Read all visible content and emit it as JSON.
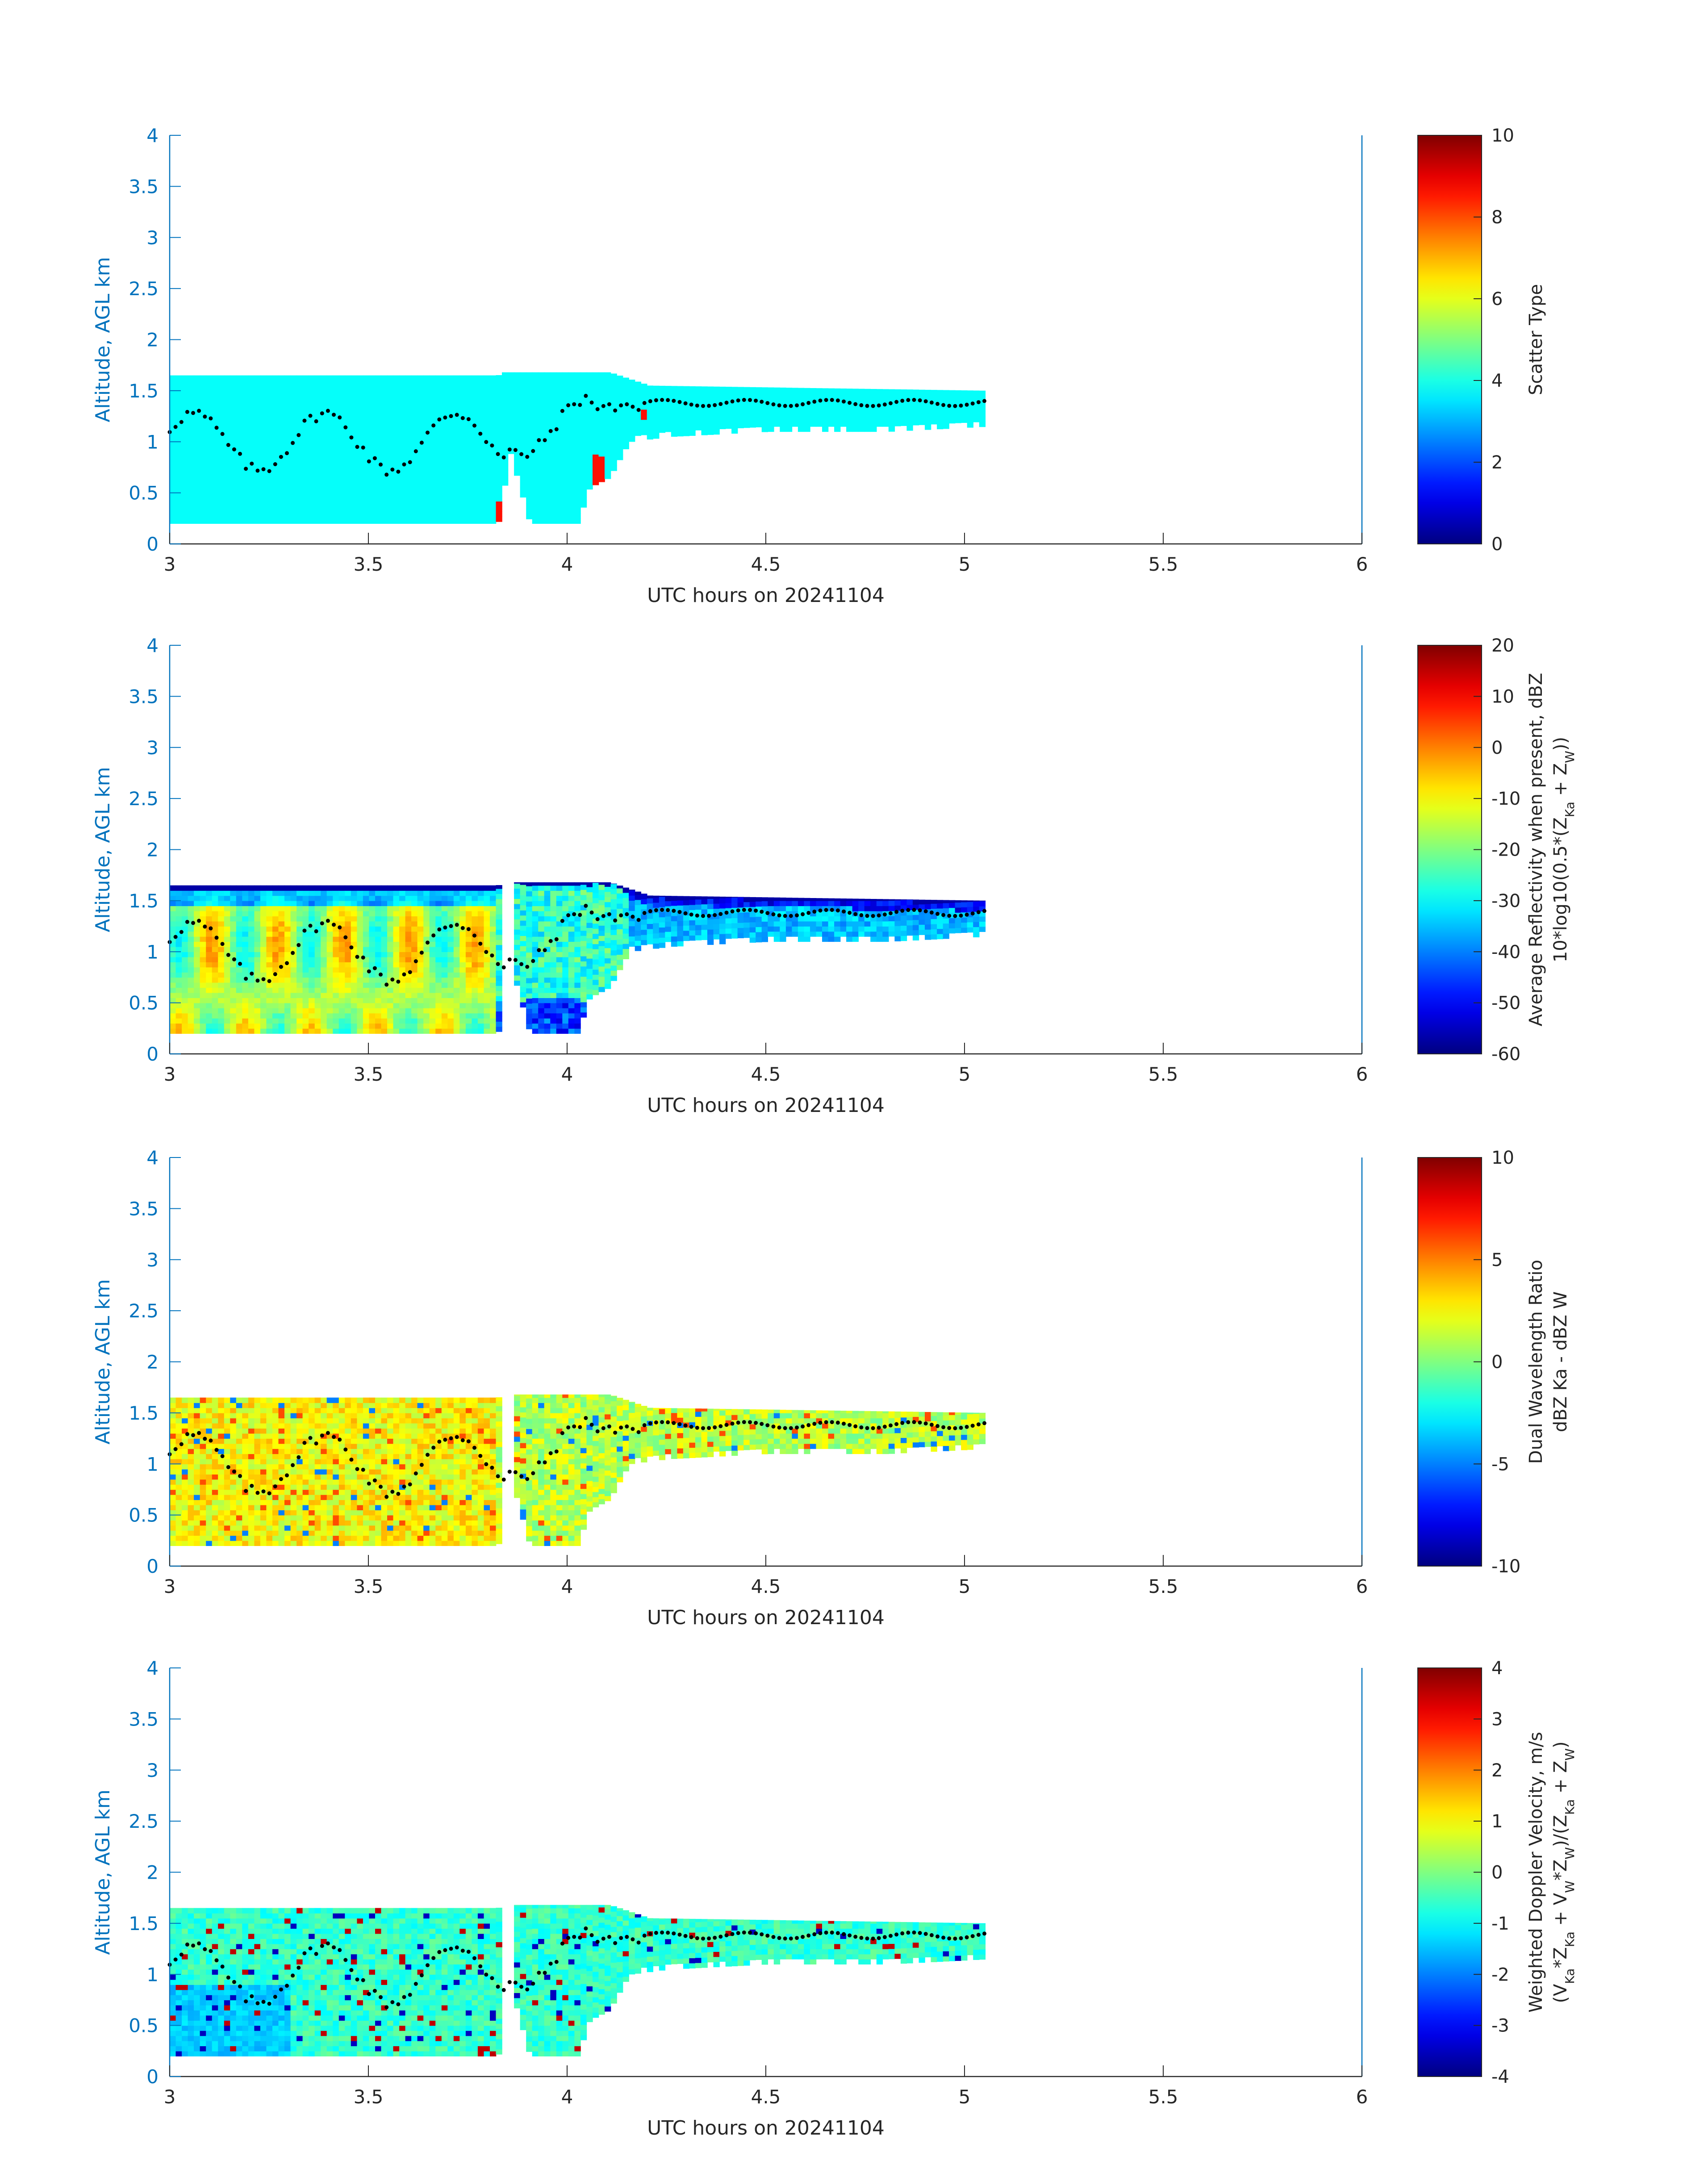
{
  "figure": {
    "background": "#ffffff",
    "axis_color": "#0072bd",
    "tick_text_color": "#262626",
    "dot_color": "#000000"
  },
  "chart_data": [
    {
      "type": "heatmap",
      "xlabel": "UTC hours on 20241104",
      "ylabel": "Altitude, AGL km",
      "xlim": [
        3,
        6
      ],
      "ylim": [
        0,
        4
      ],
      "x_ticks": [
        "3",
        "3.5",
        "4",
        "4.5",
        "5",
        "5.5",
        "6"
      ],
      "y_ticks": [
        "0",
        "0.5",
        "1",
        "1.5",
        "2",
        "2.5",
        "3",
        "3.5",
        "4"
      ],
      "colorbar": {
        "label": [
          "Scatter Type"
        ],
        "range": [
          0,
          10
        ],
        "ticks": [
          "0",
          "2",
          "4",
          "6",
          "8",
          "10"
        ],
        "colormap": "jet"
      },
      "field": "scatter"
    },
    {
      "type": "heatmap",
      "xlabel": "UTC hours on 20241104",
      "ylabel": "Altitude, AGL km",
      "xlim": [
        3,
        6
      ],
      "ylim": [
        0,
        4
      ],
      "x_ticks": [
        "3",
        "3.5",
        "4",
        "4.5",
        "5",
        "5.5",
        "6"
      ],
      "y_ticks": [
        "0",
        "0.5",
        "1",
        "1.5",
        "2",
        "2.5",
        "3",
        "3.5",
        "4"
      ],
      "colorbar": {
        "label": [
          "Average Reflectivity when present, dBZ",
          "10*log10(0.5*(Z_Ka + Z_W))"
        ],
        "range": [
          -60,
          20
        ],
        "ticks": [
          "-60",
          "-50",
          "-40",
          "-30",
          "-20",
          "-10",
          "0",
          "10",
          "20"
        ],
        "colormap": "jet"
      },
      "field": "reflectivity"
    },
    {
      "type": "heatmap",
      "xlabel": "UTC hours on 20241104",
      "ylabel": "Altitude, AGL km",
      "xlim": [
        3,
        6
      ],
      "ylim": [
        0,
        4
      ],
      "x_ticks": [
        "3",
        "3.5",
        "4",
        "4.5",
        "5",
        "5.5",
        "6"
      ],
      "y_ticks": [
        "0",
        "0.5",
        "1",
        "1.5",
        "2",
        "2.5",
        "3",
        "3.5",
        "4"
      ],
      "colorbar": {
        "label": [
          "Dual Wavelength Ratio",
          "dBZ Ka - dBZ W"
        ],
        "range": [
          -10,
          10
        ],
        "ticks": [
          "-10",
          "-5",
          "0",
          "5",
          "10"
        ],
        "colormap": "jet"
      },
      "field": "dwr"
    },
    {
      "type": "heatmap",
      "xlabel": "UTC hours on 20241104",
      "ylabel": "Altitude, AGL km",
      "xlim": [
        3,
        6
      ],
      "ylim": [
        0,
        4
      ],
      "x_ticks": [
        "3",
        "3.5",
        "4",
        "4.5",
        "5",
        "5.5",
        "6"
      ],
      "y_ticks": [
        "0",
        "0.5",
        "1",
        "1.5",
        "2",
        "2.5",
        "3",
        "3.5",
        "4"
      ],
      "colorbar": {
        "label": [
          "Weighted Doppler Velocity, m/s",
          "(V_Ka*Z_Ka + V_W*Z_W)/(Z_Ka + Z_W)"
        ],
        "range": [
          -4,
          4
        ],
        "ticks": [
          "-4",
          "-3",
          "-2",
          "-1",
          "0",
          "1",
          "2",
          "3",
          "4"
        ],
        "colormap": "jet"
      },
      "field": "velocity"
    }
  ],
  "cloud_top": {
    "segments": [
      [
        3.0,
        1.65
      ],
      [
        3.82,
        1.65
      ],
      [
        3.83,
        1.68
      ],
      [
        4.1,
        1.68
      ],
      [
        4.2,
        1.55
      ],
      [
        5.05,
        1.5
      ]
    ]
  },
  "cloud_base": {
    "segments": [
      [
        3.0,
        0.2
      ],
      [
        3.8,
        0.2
      ],
      [
        3.82,
        0.2
      ],
      [
        3.85,
        0.9
      ],
      [
        3.9,
        0.2
      ],
      [
        4.02,
        0.2
      ],
      [
        4.05,
        0.55
      ],
      [
        4.1,
        0.65
      ],
      [
        4.15,
        1.0
      ],
      [
        4.25,
        1.05
      ],
      [
        4.5,
        1.1
      ],
      [
        4.8,
        1.1
      ],
      [
        5.05,
        1.15
      ]
    ]
  },
  "dots": {
    "x_start": 3.0,
    "x_end": 5.05,
    "count": 140,
    "noisy_until": 4.2,
    "smooth_level": 1.38
  }
}
